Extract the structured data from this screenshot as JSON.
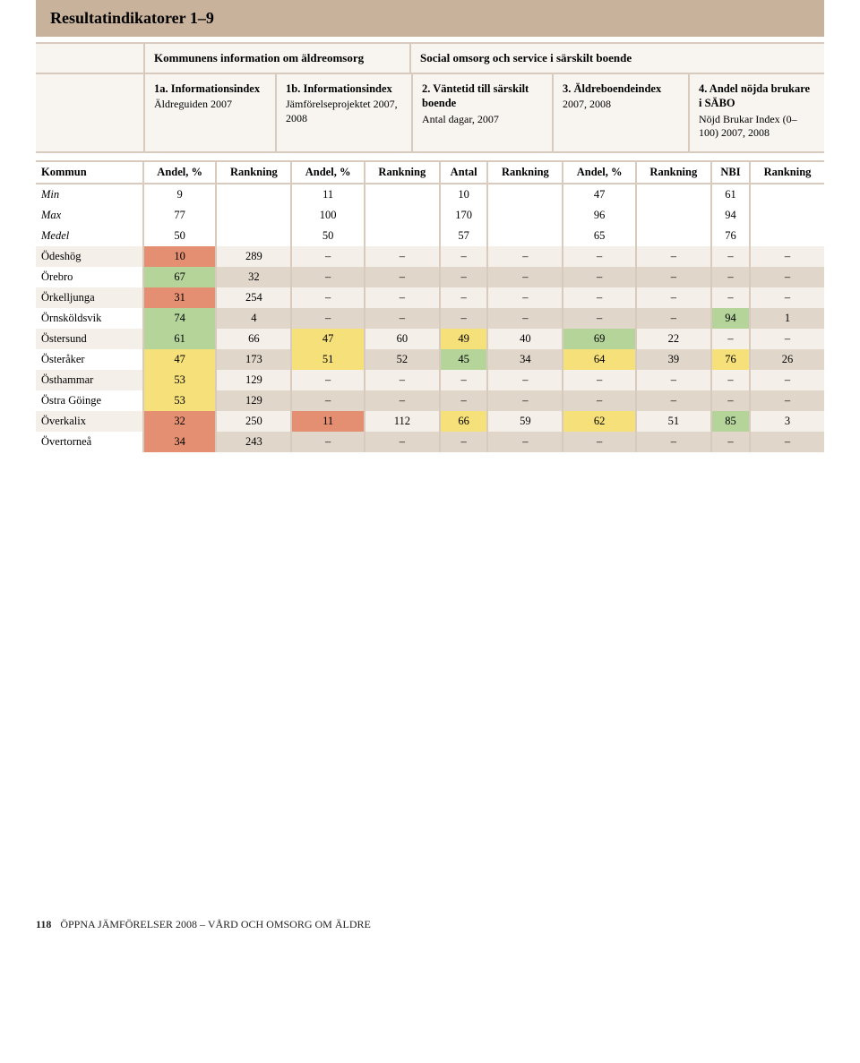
{
  "title": "Resultatindikatorer 1–9",
  "header_groups": {
    "left": "Kommunens information om äldreomsorg",
    "right": "Social omsorg och service i särskilt boende"
  },
  "cards": {
    "c1": {
      "title": "1a. Informationsindex",
      "sub": "Äldreguiden 2007"
    },
    "c1b": {
      "title": "1b. Informationsindex",
      "sub": "Jämförelseprojektet 2007, 2008"
    },
    "c2": {
      "title": "2. Väntetid till särskilt boende",
      "sub": "Antal dagar, 2007"
    },
    "c3": {
      "title": "3. Äldreboendeindex",
      "sub": "2007, 2008"
    },
    "c4": {
      "title": "4. Andel nöjda brukare i SÄBO",
      "sub": "Nöjd Brukar Index (0–100) 2007, 2008"
    }
  },
  "column_headers": [
    "Kommun",
    "Andel, %",
    "Rankning",
    "Andel, %",
    "Rankning",
    "Antal",
    "Rankning",
    "Andel, %",
    "Rankning",
    "NBI",
    "Rankning"
  ],
  "meta_rows": [
    {
      "label": "Min",
      "v": [
        "9",
        "",
        "11",
        "",
        "10",
        "",
        "47",
        "",
        "61",
        ""
      ]
    },
    {
      "label": "Max",
      "v": [
        "77",
        "",
        "100",
        "",
        "170",
        "",
        "96",
        "",
        "94",
        ""
      ]
    },
    {
      "label": "Medel",
      "v": [
        "50",
        "",
        "50",
        "",
        "57",
        "",
        "65",
        "",
        "76",
        ""
      ]
    }
  ],
  "rows": [
    {
      "label": "Ödeshög",
      "cells": [
        {
          "v": "10",
          "c": "red"
        },
        {
          "v": "289",
          "c": "data"
        },
        {
          "v": "–",
          "c": "na"
        },
        {
          "v": "–",
          "c": "na"
        },
        {
          "v": "–",
          "c": "na"
        },
        {
          "v": "–",
          "c": "na"
        },
        {
          "v": "–",
          "c": "na"
        },
        {
          "v": "–",
          "c": "na"
        },
        {
          "v": "–",
          "c": "na"
        },
        {
          "v": "–",
          "c": "na"
        }
      ]
    },
    {
      "label": "Örebro",
      "cells": [
        {
          "v": "67",
          "c": "green"
        },
        {
          "v": "32",
          "c": "data"
        },
        {
          "v": "–",
          "c": "na"
        },
        {
          "v": "–",
          "c": "na"
        },
        {
          "v": "–",
          "c": "na"
        },
        {
          "v": "–",
          "c": "na"
        },
        {
          "v": "–",
          "c": "na"
        },
        {
          "v": "–",
          "c": "na"
        },
        {
          "v": "–",
          "c": "na"
        },
        {
          "v": "–",
          "c": "na"
        }
      ]
    },
    {
      "label": "Örkelljunga",
      "cells": [
        {
          "v": "31",
          "c": "red"
        },
        {
          "v": "254",
          "c": "data"
        },
        {
          "v": "–",
          "c": "na"
        },
        {
          "v": "–",
          "c": "na"
        },
        {
          "v": "–",
          "c": "na"
        },
        {
          "v": "–",
          "c": "na"
        },
        {
          "v": "–",
          "c": "na"
        },
        {
          "v": "–",
          "c": "na"
        },
        {
          "v": "–",
          "c": "na"
        },
        {
          "v": "–",
          "c": "na"
        }
      ]
    },
    {
      "label": "Örnsköldsvik",
      "cells": [
        {
          "v": "74",
          "c": "green"
        },
        {
          "v": "4",
          "c": "data"
        },
        {
          "v": "–",
          "c": "na"
        },
        {
          "v": "–",
          "c": "na"
        },
        {
          "v": "–",
          "c": "na"
        },
        {
          "v": "–",
          "c": "na"
        },
        {
          "v": "–",
          "c": "na"
        },
        {
          "v": "–",
          "c": "na"
        },
        {
          "v": "94",
          "c": "green"
        },
        {
          "v": "1",
          "c": "data"
        }
      ]
    },
    {
      "label": "Östersund",
      "cells": [
        {
          "v": "61",
          "c": "green"
        },
        {
          "v": "66",
          "c": "data"
        },
        {
          "v": "47",
          "c": "yellow"
        },
        {
          "v": "60",
          "c": "data"
        },
        {
          "v": "49",
          "c": "yellow"
        },
        {
          "v": "40",
          "c": "data"
        },
        {
          "v": "69",
          "c": "green"
        },
        {
          "v": "22",
          "c": "data"
        },
        {
          "v": "–",
          "c": "na"
        },
        {
          "v": "–",
          "c": "na"
        }
      ]
    },
    {
      "label": "Österåker",
      "cells": [
        {
          "v": "47",
          "c": "yellow"
        },
        {
          "v": "173",
          "c": "data"
        },
        {
          "v": "51",
          "c": "yellow"
        },
        {
          "v": "52",
          "c": "data"
        },
        {
          "v": "45",
          "c": "green"
        },
        {
          "v": "34",
          "c": "data"
        },
        {
          "v": "64",
          "c": "yellow"
        },
        {
          "v": "39",
          "c": "data"
        },
        {
          "v": "76",
          "c": "yellow"
        },
        {
          "v": "26",
          "c": "data"
        }
      ]
    },
    {
      "label": "Östhammar",
      "cells": [
        {
          "v": "53",
          "c": "yellow"
        },
        {
          "v": "129",
          "c": "data"
        },
        {
          "v": "–",
          "c": "na"
        },
        {
          "v": "–",
          "c": "na"
        },
        {
          "v": "–",
          "c": "na"
        },
        {
          "v": "–",
          "c": "na"
        },
        {
          "v": "–",
          "c": "na"
        },
        {
          "v": "–",
          "c": "na"
        },
        {
          "v": "–",
          "c": "na"
        },
        {
          "v": "–",
          "c": "na"
        }
      ]
    },
    {
      "label": "Östra Göinge",
      "cells": [
        {
          "v": "53",
          "c": "yellow"
        },
        {
          "v": "129",
          "c": "data"
        },
        {
          "v": "–",
          "c": "na"
        },
        {
          "v": "–",
          "c": "na"
        },
        {
          "v": "–",
          "c": "na"
        },
        {
          "v": "–",
          "c": "na"
        },
        {
          "v": "–",
          "c": "na"
        },
        {
          "v": "–",
          "c": "na"
        },
        {
          "v": "–",
          "c": "na"
        },
        {
          "v": "–",
          "c": "na"
        }
      ]
    },
    {
      "label": "Överkalix",
      "cells": [
        {
          "v": "32",
          "c": "red"
        },
        {
          "v": "250",
          "c": "data"
        },
        {
          "v": "11",
          "c": "red"
        },
        {
          "v": "112",
          "c": "data"
        },
        {
          "v": "66",
          "c": "yellow"
        },
        {
          "v": "59",
          "c": "data"
        },
        {
          "v": "62",
          "c": "yellow"
        },
        {
          "v": "51",
          "c": "data"
        },
        {
          "v": "85",
          "c": "green"
        },
        {
          "v": "3",
          "c": "data"
        }
      ]
    },
    {
      "label": "Övertorneå",
      "cells": [
        {
          "v": "34",
          "c": "red"
        },
        {
          "v": "243",
          "c": "data"
        },
        {
          "v": "–",
          "c": "na"
        },
        {
          "v": "–",
          "c": "na"
        },
        {
          "v": "–",
          "c": "na"
        },
        {
          "v": "–",
          "c": "na"
        },
        {
          "v": "–",
          "c": "na"
        },
        {
          "v": "–",
          "c": "na"
        },
        {
          "v": "–",
          "c": "na"
        },
        {
          "v": "–",
          "c": "na"
        }
      ]
    }
  ],
  "colors": {
    "title_bg": "#c8b29b",
    "band_border": "#d8cbbd",
    "band_bg": "#f8f5f1",
    "green": "#b4d49a",
    "yellow": "#f6e07a",
    "red": "#e58f72",
    "neutral_dark": "#e0d7ca",
    "neutral_light": "#f4efe9"
  },
  "footer": {
    "page": "118",
    "caption": "ÖPPNA JÄMFÖRELSER 2008 – VÅRD OCH OMSORG OM ÄLDRE"
  }
}
